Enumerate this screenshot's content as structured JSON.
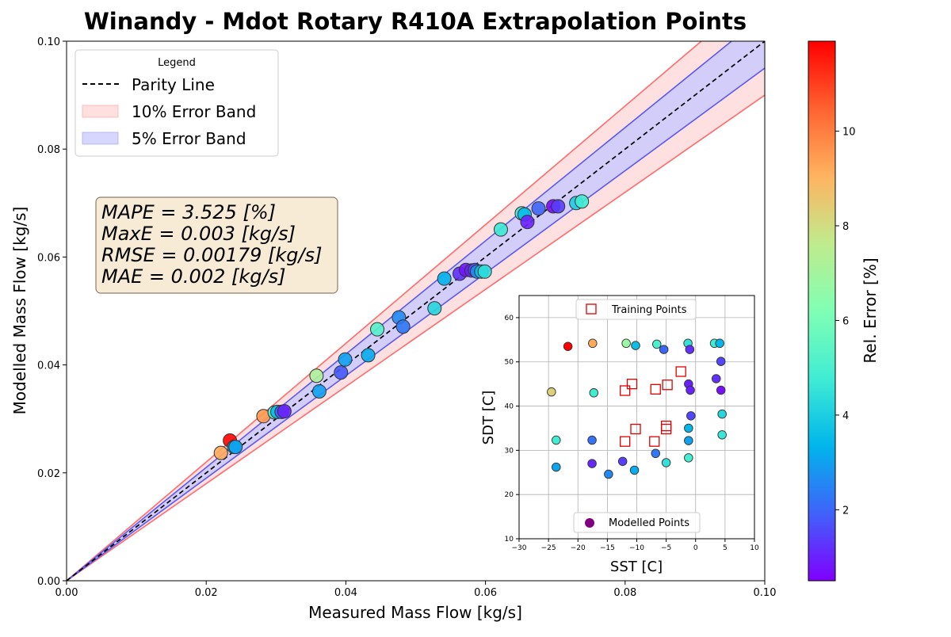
{
  "chart_data": [
    {
      "type": "scatter",
      "title": "Winandy - Mdot Rotary R410A Extrapolation Points",
      "xlabel": "Measured Mass Flow [kg/s]",
      "ylabel": "Modelled Mass Flow [kg/s]",
      "xlim": [
        0,
        0.1
      ],
      "ylim": [
        0,
        0.1
      ],
      "xticks": [
        "0.00",
        "0.02",
        "0.04",
        "0.06",
        "0.08",
        "0.10"
      ],
      "yticks": [
        "0.00",
        "0.02",
        "0.04",
        "0.06",
        "0.08",
        "0.10"
      ],
      "legend": {
        "title": "Legend",
        "position": "upper-left",
        "entries": [
          "Parity Line",
          "10% Error Band",
          "5% Error Band"
        ]
      },
      "bands": {
        "ten_pct": 0.1,
        "five_pct": 0.05
      },
      "stats": [
        "MAPE = 3.525 [%]",
        "MaxE = 0.003 [kg/s]",
        "RMSE = 0.00179 [kg/s]",
        "MAE = 0.002 [kg/s]"
      ],
      "colorbar": {
        "label": "Rel. Error [%]",
        "range": [
          0.5,
          11.9
        ],
        "ticks": [
          "2",
          "4",
          "6",
          "8",
          "10"
        ],
        "colormap": "rainbow"
      },
      "points": [
        {
          "x": 0.0221,
          "y": 0.0237,
          "err": 9.2
        },
        {
          "x": 0.0234,
          "y": 0.026,
          "err": 11.9
        },
        {
          "x": 0.024,
          "y": 0.0248,
          "err": 3.4
        },
        {
          "x": 0.0242,
          "y": 0.0248,
          "err": 3.0
        },
        {
          "x": 0.0282,
          "y": 0.0305,
          "err": 9.5
        },
        {
          "x": 0.0298,
          "y": 0.0312,
          "err": 5.2
        },
        {
          "x": 0.0302,
          "y": 0.0313,
          "err": 3.5
        },
        {
          "x": 0.0308,
          "y": 0.0313,
          "err": 1.8
        },
        {
          "x": 0.0312,
          "y": 0.0314,
          "err": 1.0
        },
        {
          "x": 0.0358,
          "y": 0.038,
          "err": 7.2
        },
        {
          "x": 0.0362,
          "y": 0.0351,
          "err": 3.0
        },
        {
          "x": 0.0393,
          "y": 0.0386,
          "err": 1.8
        },
        {
          "x": 0.0399,
          "y": 0.041,
          "err": 3.0
        },
        {
          "x": 0.0432,
          "y": 0.0418,
          "err": 3.2
        },
        {
          "x": 0.0445,
          "y": 0.0466,
          "err": 5.2
        },
        {
          "x": 0.0476,
          "y": 0.0488,
          "err": 2.6
        },
        {
          "x": 0.0482,
          "y": 0.0471,
          "err": 2.3
        },
        {
          "x": 0.0527,
          "y": 0.0505,
          "err": 4.2
        },
        {
          "x": 0.0541,
          "y": 0.056,
          "err": 3.3
        },
        {
          "x": 0.0563,
          "y": 0.0569,
          "err": 1.2
        },
        {
          "x": 0.0572,
          "y": 0.0576,
          "err": 0.8
        },
        {
          "x": 0.058,
          "y": 0.0575,
          "err": 1.0
        },
        {
          "x": 0.0585,
          "y": 0.0576,
          "err": 1.6
        },
        {
          "x": 0.0588,
          "y": 0.0573,
          "err": 2.7
        },
        {
          "x": 0.0594,
          "y": 0.0573,
          "err": 3.6
        },
        {
          "x": 0.0599,
          "y": 0.0573,
          "err": 4.4
        },
        {
          "x": 0.0622,
          "y": 0.0651,
          "err": 4.7
        },
        {
          "x": 0.0652,
          "y": 0.0681,
          "err": 4.6
        },
        {
          "x": 0.0656,
          "y": 0.0679,
          "err": 3.5
        },
        {
          "x": 0.066,
          "y": 0.0665,
          "err": 1.0
        },
        {
          "x": 0.0676,
          "y": 0.069,
          "err": 2.0
        },
        {
          "x": 0.0697,
          "y": 0.0694,
          "err": 0.6
        },
        {
          "x": 0.0704,
          "y": 0.0694,
          "err": 1.4
        },
        {
          "x": 0.073,
          "y": 0.07,
          "err": 4.0
        },
        {
          "x": 0.0738,
          "y": 0.0703,
          "err": 4.8
        }
      ]
    },
    {
      "type": "scatter",
      "title": "",
      "xlabel": "SST [C]",
      "ylabel": "SDT [C]",
      "xlim": [
        -30,
        10
      ],
      "ylim": [
        10,
        65
      ],
      "xticks": [
        "−30",
        "−25",
        "−20",
        "−15",
        "−10",
        "−5",
        "0",
        "5",
        "10"
      ],
      "yticks": [
        "10",
        "20",
        "30",
        "40",
        "50",
        "60"
      ],
      "grid": true,
      "legend_training": "Training Points",
      "legend_modelled": "Modelled Points",
      "training_points": [
        {
          "x": -10.8,
          "y": 45.0
        },
        {
          "x": -12.0,
          "y": 43.5
        },
        {
          "x": -6.8,
          "y": 43.8
        },
        {
          "x": -4.8,
          "y": 44.8
        },
        {
          "x": -2.5,
          "y": 47.8
        },
        {
          "x": -12.0,
          "y": 32.0
        },
        {
          "x": -10.2,
          "y": 34.8
        },
        {
          "x": -7.0,
          "y": 32.0
        },
        {
          "x": -5.0,
          "y": 34.8
        },
        {
          "x": -5.0,
          "y": 35.5
        }
      ],
      "modelled_points": [
        {
          "x": -21.7,
          "y": 53.5,
          "err": 11.9
        },
        {
          "x": -17.5,
          "y": 54.2,
          "err": 9.2
        },
        {
          "x": -11.8,
          "y": 54.2,
          "err": 6.8
        },
        {
          "x": -10.2,
          "y": 53.7,
          "err": 3.6
        },
        {
          "x": -6.6,
          "y": 54.0,
          "err": 5.0
        },
        {
          "x": -5.4,
          "y": 52.8,
          "err": 2.0
        },
        {
          "x": -1.3,
          "y": 54.2,
          "err": 4.5
        },
        {
          "x": -1.0,
          "y": 52.8,
          "err": 1.2
        },
        {
          "x": 3.2,
          "y": 54.2,
          "err": 4.8
        },
        {
          "x": 4.1,
          "y": 54.2,
          "err": 3.4
        },
        {
          "x": 4.3,
          "y": 50.1,
          "err": 1.5
        },
        {
          "x": 3.5,
          "y": 46.2,
          "err": 1.2
        },
        {
          "x": -1.2,
          "y": 45.0,
          "err": 1.0
        },
        {
          "x": -0.9,
          "y": 43.6,
          "err": 1.0
        },
        {
          "x": 4.3,
          "y": 43.6,
          "err": 0.7
        },
        {
          "x": -24.5,
          "y": 43.2,
          "err": 8.3
        },
        {
          "x": -17.3,
          "y": 43.0,
          "err": 4.8
        },
        {
          "x": -0.8,
          "y": 37.8,
          "err": 1.5
        },
        {
          "x": 4.5,
          "y": 38.2,
          "err": 4.2
        },
        {
          "x": -1.2,
          "y": 35.0,
          "err": 3.4
        },
        {
          "x": 4.5,
          "y": 33.5,
          "err": 4.6
        },
        {
          "x": -23.7,
          "y": 32.3,
          "err": 4.8
        },
        {
          "x": -17.6,
          "y": 32.3,
          "err": 2.2
        },
        {
          "x": -1.2,
          "y": 32.2,
          "err": 3.0
        },
        {
          "x": -17.6,
          "y": 27.0,
          "err": 1.1
        },
        {
          "x": -12.4,
          "y": 27.5,
          "err": 1.4
        },
        {
          "x": -6.8,
          "y": 29.3,
          "err": 2.3
        },
        {
          "x": -5.0,
          "y": 27.2,
          "err": 4.5
        },
        {
          "x": -1.2,
          "y": 28.3,
          "err": 4.9
        },
        {
          "x": -23.7,
          "y": 26.2,
          "err": 3.1
        },
        {
          "x": -14.8,
          "y": 24.6,
          "err": 2.6
        },
        {
          "x": -10.4,
          "y": 25.5,
          "err": 3.2
        }
      ]
    }
  ]
}
